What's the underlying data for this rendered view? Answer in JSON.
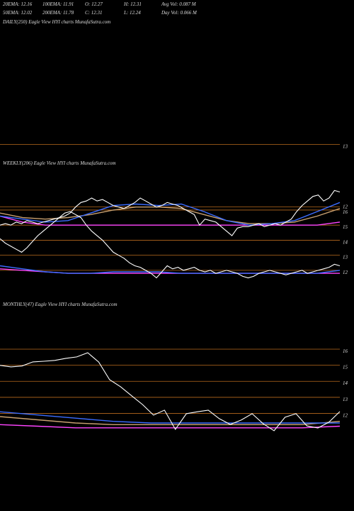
{
  "header": {
    "row1": [
      "20EMA: 12.16",
      "100EMA: 11.91",
      "O: 12.27",
      "H: 12.31",
      "Avg Vol: 0.087  M"
    ],
    "row2": [
      "50EMA: 12.02",
      "200EMA: 11.78",
      "C: 12.31",
      "L: 12.24",
      "Day Vol: 0.066  M"
    ]
  },
  "chart_data": [
    {
      "type": "line",
      "title": "DAILY(250) Eagle  View  HYI charts MunafaSutra.com",
      "ylim": [
        12.8,
        15
      ],
      "yticks": [
        13
      ],
      "series": []
    },
    {
      "type": "line",
      "title": "WEEKLY(206) Eagle  View  HYI charts MunafaSutra.com",
      "ylim": [
        11.1,
        18.4
      ],
      "yticks": [
        16,
        15,
        14,
        13,
        12
      ],
      "y2lim": [
        10.6,
        12.6
      ],
      "y2ticks": [
        12
      ],
      "series": [
        {
          "color": "#c8a070",
          "values": [
            15.8,
            15.5,
            15.4,
            15.5,
            15.7,
            16.0,
            16.2,
            16.2,
            16.1,
            15.7,
            15.3,
            15.1,
            15.1,
            15.2,
            15.6,
            16.1
          ]
        },
        {
          "color": "#ff44ff",
          "values": [
            15.6,
            15.2,
            15.0,
            15.0,
            15.0,
            15.0,
            15.0,
            15.0,
            15.0,
            15.0,
            15.0,
            15.0,
            15.0,
            15.0,
            15.0,
            15.2
          ]
        },
        {
          "color": "#3b6cff",
          "values": [
            15.6,
            15.4,
            15.2,
            15.3,
            15.8,
            16.3,
            16.4,
            16.3,
            16.4,
            15.9,
            15.3,
            15.0,
            15.1,
            15.3,
            15.9,
            16.5
          ]
        },
        {
          "color": "#ffffff",
          "values": [
            15.0,
            15.1,
            15.0,
            15.2,
            15.1,
            15.3,
            15.2,
            15.1,
            15.2,
            15.3,
            15.4,
            15.5,
            15.6,
            15.8,
            16.2,
            16.5,
            16.6,
            16.8,
            16.6,
            16.7,
            16.5,
            16.3,
            16.2,
            16.1,
            16.3,
            16.5,
            16.8,
            16.6,
            16.4,
            16.2,
            16.3,
            16.5,
            16.4,
            16.3,
            16.1,
            15.9,
            15.7,
            15.0,
            15.4,
            15.3,
            15.2,
            14.9,
            14.6,
            14.3,
            14.8,
            14.9,
            14.9,
            15.0,
            15.1,
            14.9,
            15.0,
            15.1,
            15.0,
            15.2,
            15.4,
            15.9,
            16.3,
            16.6,
            16.9,
            17.0,
            16.6,
            16.8,
            17.3,
            17.2
          ]
        },
        {
          "color": "#ff44ff",
          "values": [
            12.1,
            12.0,
            11.9,
            11.8,
            11.8,
            11.8,
            11.8,
            11.8,
            11.8,
            11.8,
            11.8,
            11.8,
            11.8,
            11.8,
            11.8,
            11.8
          ]
        },
        {
          "color": "#3b6cff",
          "values": [
            12.3,
            12.1,
            11.9,
            11.8,
            11.8,
            11.9,
            11.9,
            11.9,
            11.8,
            11.8,
            11.8,
            11.8,
            11.8,
            11.8,
            11.8,
            12.0
          ]
        },
        {
          "color": "#ffffff",
          "values": [
            14.1,
            13.8,
            13.6,
            13.4,
            13.2,
            13.5,
            13.9,
            14.3,
            14.6,
            14.9,
            15.2,
            15.5,
            15.8,
            15.9,
            15.7,
            15.5,
            15.0,
            14.6,
            14.3,
            14.0,
            13.6,
            13.2,
            13.0,
            12.8,
            12.5,
            12.3,
            12.2,
            12.0,
            11.8,
            11.5,
            11.9,
            12.3,
            12.1,
            12.2,
            12.0,
            12.1,
            12.2,
            12.0,
            11.9,
            12.0,
            11.8,
            11.9,
            12.0,
            11.9,
            11.8,
            11.6,
            11.5,
            11.6,
            11.8,
            11.9,
            12.0,
            11.9,
            11.8,
            11.7,
            11.8,
            11.9,
            12.0,
            11.8,
            11.9,
            12.0,
            12.1,
            12.2,
            12.4,
            12.3
          ]
        }
      ]
    },
    {
      "type": "line",
      "title": "MONTHLY(47) Eagle  View  HYI charts MunafaSutra.com",
      "ylim": [
        6.8,
        18.3
      ],
      "yticks": [
        16,
        15,
        14,
        13,
        12
      ],
      "series": [
        {
          "color": "#c8a070",
          "values": [
            11.8,
            11.6,
            11.4,
            11.3,
            11.3,
            11.3,
            11.3,
            11.3,
            11.3,
            11.5
          ]
        },
        {
          "color": "#ff44ff",
          "values": [
            11.3,
            11.2,
            11.1,
            11.1,
            11.1,
            11.1,
            11.1,
            11.1,
            11.1,
            11.2
          ]
        },
        {
          "color": "#3b6cff",
          "values": [
            12.1,
            11.9,
            11.7,
            11.5,
            11.4,
            11.4,
            11.4,
            11.4,
            11.4,
            11.4
          ]
        },
        {
          "color": "#ffffff",
          "values": [
            14.99,
            14.9,
            14.95,
            15.21,
            15.25,
            15.3,
            15.43,
            15.52,
            15.78,
            15.2,
            14.1,
            13.66,
            13.1,
            12.55,
            11.89,
            12.2,
            11.0,
            11.98,
            12.1,
            12.2,
            11.67,
            11.31,
            11.58,
            11.98,
            11.36,
            10.92,
            11.76,
            11.98,
            11.22,
            11.09,
            11.45,
            12.11
          ]
        }
      ]
    }
  ]
}
